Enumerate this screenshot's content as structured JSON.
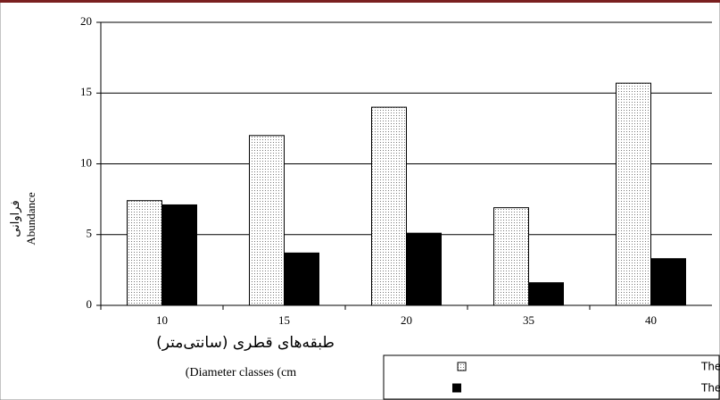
{
  "chart_data": {
    "type": "bar",
    "y_label_fa": "فراوانی",
    "y_label": "Abundance",
    "x_label_fa": "طبقه‌های قطری (سانتی‌متر)",
    "x_label": "(Diameter classes (cm",
    "categories": [
      "10",
      "15",
      "20",
      "35",
      "40"
    ],
    "series": [
      {
        "name": "میانگین ارتفاع تنه The average of trunk height",
        "color": "#e0e0e0",
        "values": [
          7.4,
          12,
          14,
          6.9,
          15.7
        ]
      },
      {
        "name": "میانگین ارتفاع تاج The average of crown height",
        "color": "#000000",
        "values": [
          7.1,
          3.7,
          5.1,
          1.6,
          3.3
        ]
      }
    ],
    "ylim": [
      0,
      20
    ],
    "yticks": [
      0,
      5,
      10,
      15,
      20
    ],
    "grid": true
  }
}
